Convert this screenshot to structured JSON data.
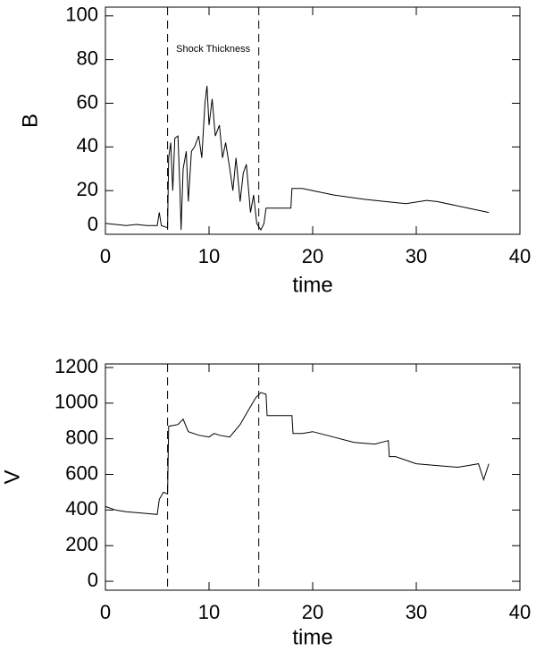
{
  "chart_data": [
    {
      "type": "line",
      "xlabel": "time",
      "ylabel": "B",
      "x": [
        0,
        1,
        2,
        3,
        4,
        5,
        5.2,
        5.4,
        6,
        6.1,
        6.3,
        6.5,
        6.7,
        7,
        7.2,
        7.3,
        7.5,
        7.8,
        8,
        8.3,
        8.6,
        9,
        9.3,
        9.6,
        9.8,
        10,
        10.3,
        10.6,
        11,
        11.3,
        11.6,
        12,
        12.3,
        12.6,
        13,
        13.3,
        13.6,
        14,
        14.3,
        14.6,
        15,
        15.3,
        15.5,
        17.9,
        18,
        19,
        22,
        25,
        27,
        29,
        31,
        32,
        35,
        37
      ],
      "series": [
        {
          "name": "B",
          "color": "#000000",
          "values": [
            5,
            4.5,
            4,
            4.5,
            4,
            4,
            10,
            4,
            3,
            35,
            42,
            20,
            44,
            45,
            20,
            2,
            30,
            38,
            15,
            38,
            40,
            45,
            35,
            60,
            68,
            50,
            62,
            45,
            50,
            35,
            42,
            30,
            20,
            35,
            15,
            28,
            32,
            10,
            18,
            5,
            2,
            5,
            12,
            12,
            21,
            21,
            18,
            16,
            15,
            14,
            15.5,
            15,
            12,
            10
          ]
        }
      ],
      "xlim": [
        0,
        40
      ],
      "xticks": [
        0,
        10,
        20,
        30,
        40
      ],
      "ylim": [
        0,
        104
      ],
      "yticks": [
        0,
        20,
        40,
        60,
        80,
        100
      ],
      "vlines": [
        6,
        14.8
      ],
      "annotations": [
        "Shock Thickness"
      ]
    },
    {
      "type": "line",
      "xlabel": "time",
      "ylabel": "V",
      "x": [
        0,
        1,
        2,
        3,
        4,
        5,
        5.2,
        5.6,
        6,
        6.1,
        7,
        7.5,
        8,
        9,
        10,
        10.5,
        11,
        12,
        13,
        14,
        14.5,
        15,
        15.5,
        15.6,
        18,
        18.1,
        19,
        20,
        22,
        24,
        26,
        27.3,
        27.4,
        28,
        30,
        32,
        34,
        35,
        36,
        36.5,
        37
      ],
      "series": [
        {
          "name": "V",
          "color": "#000000",
          "values": [
            420,
            400,
            390,
            385,
            380,
            375,
            460,
            500,
            490,
            870,
            880,
            910,
            840,
            820,
            810,
            830,
            820,
            810,
            880,
            980,
            1030,
            1060,
            1050,
            930,
            930,
            830,
            830,
            840,
            810,
            780,
            770,
            790,
            700,
            700,
            660,
            650,
            640,
            650,
            660,
            570,
            660
          ]
        }
      ],
      "xlim": [
        0,
        40
      ],
      "xticks": [
        0,
        10,
        20,
        30,
        40
      ],
      "ylim": [
        -50,
        1220
      ],
      "yticks": [
        0,
        200,
        400,
        600,
        800,
        1000,
        1200
      ],
      "vlines": [
        6,
        14.8
      ],
      "annotations": []
    }
  ]
}
